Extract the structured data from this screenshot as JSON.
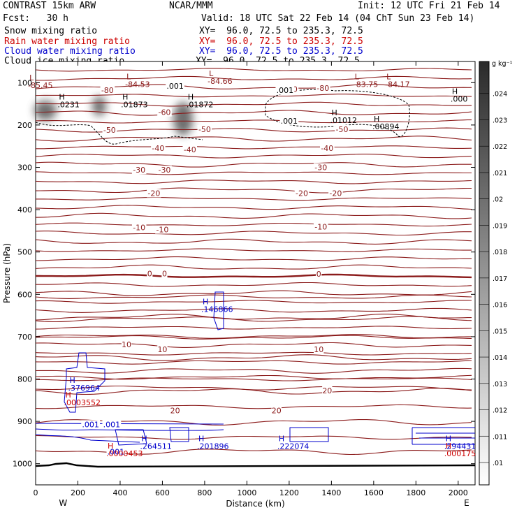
{
  "header": {
    "line1_left": "CONTRAST 15km ARW",
    "line1_mid": "NCAR/MMM",
    "line1_right": "Init: 12 UTC Fri 21 Feb 14",
    "line2_left": "Fcst:   30 h",
    "line2_right": "Valid: 18 UTC Sat 22 Feb 14 (04 ChT Sun 23 Feb 14)",
    "fields": [
      {
        "name": "Snow mixing ratio",
        "xy": "XY=  96.0, 72.5 to 235.3, 72.5",
        "color": "#000000"
      },
      {
        "name": "Rain water mixing ratio",
        "xy": "XY=  96.0, 72.5 to 235.3, 72.5",
        "color": "#cc0000"
      },
      {
        "name": "Cloud water mixing ratio",
        "xy": "XY=  96.0, 72.5 to 235.3, 72.5",
        "color": "#0000cc"
      },
      {
        "name": "Cloud ice mixing ratio",
        "xy": "XY=  96.0, 72.5 to 235.3, 72.5",
        "color": "#000000"
      }
    ]
  },
  "chart_data": {
    "type": "contour",
    "xlabel": "Distance (km)",
    "ylabel": "Pressure (hPa)",
    "xlim": [
      0,
      2080
    ],
    "ylim": [
      1050,
      50
    ],
    "x_ticks": [
      0,
      200,
      400,
      600,
      800,
      1000,
      1200,
      1400,
      1600,
      1800,
      2000
    ],
    "y_ticks": [
      100,
      200,
      300,
      400,
      500,
      600,
      700,
      800,
      900,
      1000
    ],
    "x_end_labels": {
      "left": "W",
      "right": "E"
    },
    "colorbar": {
      "units": "g kg⁻¹",
      "levels": [
        ".01",
        ".011",
        ".012",
        ".013",
        ".014",
        ".015",
        ".016",
        ".017",
        ".018",
        ".019",
        ".02",
        ".021",
        ".022",
        ".023",
        ".024"
      ]
    },
    "temperature_contour_labels": [
      {
        "text": "-80",
        "x": 340,
        "p": 118
      },
      {
        "text": "-80",
        "x": 1210,
        "p": 115
      },
      {
        "text": "-80",
        "x": 1360,
        "p": 113
      },
      {
        "text": "-60",
        "x": 610,
        "p": 170
      },
      {
        "text": "-50",
        "x": 350,
        "p": 212
      },
      {
        "text": "-50",
        "x": 800,
        "p": 210
      },
      {
        "text": "-50",
        "x": 1450,
        "p": 210
      },
      {
        "text": "-40",
        "x": 580,
        "p": 255
      },
      {
        "text": "-40",
        "x": 730,
        "p": 258
      },
      {
        "text": "-40",
        "x": 1380,
        "p": 255
      },
      {
        "text": "-30",
        "x": 490,
        "p": 306
      },
      {
        "text": "-30",
        "x": 610,
        "p": 306
      },
      {
        "text": "-30",
        "x": 1350,
        "p": 300
      },
      {
        "text": "-20",
        "x": 560,
        "p": 361
      },
      {
        "text": "-20",
        "x": 1260,
        "p": 361
      },
      {
        "text": "-20",
        "x": 1420,
        "p": 361
      },
      {
        "text": "-10",
        "x": 490,
        "p": 442
      },
      {
        "text": "-10",
        "x": 600,
        "p": 447
      },
      {
        "text": "-10",
        "x": 1350,
        "p": 440
      },
      {
        "text": "0",
        "x": 540,
        "p": 551
      },
      {
        "text": "0",
        "x": 610,
        "p": 551
      },
      {
        "text": "0",
        "x": 1340,
        "p": 552
      },
      {
        "text": "10",
        "x": 430,
        "p": 718
      },
      {
        "text": "10",
        "x": 600,
        "p": 730
      },
      {
        "text": "10",
        "x": 1340,
        "p": 730
      },
      {
        "text": "20",
        "x": 660,
        "p": 874
      },
      {
        "text": "20",
        "x": 1140,
        "p": 874
      },
      {
        "text": "20",
        "x": 1380,
        "p": 827
      }
    ],
    "extrema": [
      {
        "kind": "L",
        "value": "-85.45",
        "x": 30,
        "p": 108,
        "color": "#8b1a1a"
      },
      {
        "kind": "L",
        "value": "-84.53",
        "x": 490,
        "p": 105,
        "color": "#8b1a1a"
      },
      {
        "kind": "L",
        "value": "-84.66",
        "x": 880,
        "p": 98,
        "color": "#8b1a1a"
      },
      {
        "kind": "L",
        "value": "-83.75",
        "x": 1570,
        "p": 105,
        "color": "#8b1a1a"
      },
      {
        "kind": "L",
        "value": "-84.17",
        "x": 1720,
        "p": 105,
        "color": "#8b1a1a"
      },
      {
        "kind": "H",
        "value": ".0231",
        "x": 170,
        "p": 153,
        "color": "#000000"
      },
      {
        "kind": "H",
        "value": ".01873",
        "x": 470,
        "p": 153,
        "color": "#000000"
      },
      {
        "kind": "H",
        "value": ".01872",
        "x": 780,
        "p": 153,
        "color": "#000000"
      },
      {
        "kind": "H",
        "value": ".000",
        "x": 2030,
        "p": 140,
        "color": "#000000"
      },
      {
        "kind": "H",
        "value": ".01012",
        "x": 1460,
        "p": 190,
        "color": "#000000"
      },
      {
        "kind": "H",
        "value": ".00894",
        "x": 1660,
        "p": 205,
        "color": "#000000"
      },
      {
        "kind": "H",
        "value": ".146866",
        "x": 850,
        "p": 637,
        "color": "#0000cc"
      },
      {
        "kind": "H",
        "value": ".376964",
        "x": 220,
        "p": 822,
        "color": "#0000cc"
      },
      {
        "kind": "H",
        "value": ".0003552",
        "x": 200,
        "p": 857,
        "color": "#cc0000"
      },
      {
        "kind": "H",
        "value": ".264511",
        "x": 560,
        "p": 960,
        "color": "#0000cc"
      },
      {
        "kind": "H",
        "value": ".201896",
        "x": 830,
        "p": 960,
        "color": "#0000cc"
      },
      {
        "kind": "H",
        "value": ".222074",
        "x": 1210,
        "p": 960,
        "color": "#0000cc"
      },
      {
        "kind": "H",
        "value": ".0000453",
        "x": 400,
        "p": 977,
        "color": "#cc0000"
      },
      {
        "kind": "H",
        "value": ".294431",
        "x": 2000,
        "p": 960,
        "color": "#0000cc"
      },
      {
        "kind": "H",
        "value": ".000175",
        "x": 2000,
        "p": 977,
        "color": "#cc0000"
      }
    ],
    "ice_contour_labels": [
      {
        "text": ".001",
        "x": 660,
        "p": 108
      },
      {
        "text": ".001",
        "x": 1180,
        "p": 118
      },
      {
        "text": ".001",
        "x": 1200,
        "p": 190
      }
    ],
    "cloud_water_contour_labels": [
      {
        "text": ".001",
        "x": 260,
        "p": 907
      },
      {
        "text": ".001",
        "x": 360,
        "p": 907
      },
      {
        "text": ".001",
        "x": 380,
        "p": 972
      }
    ]
  }
}
